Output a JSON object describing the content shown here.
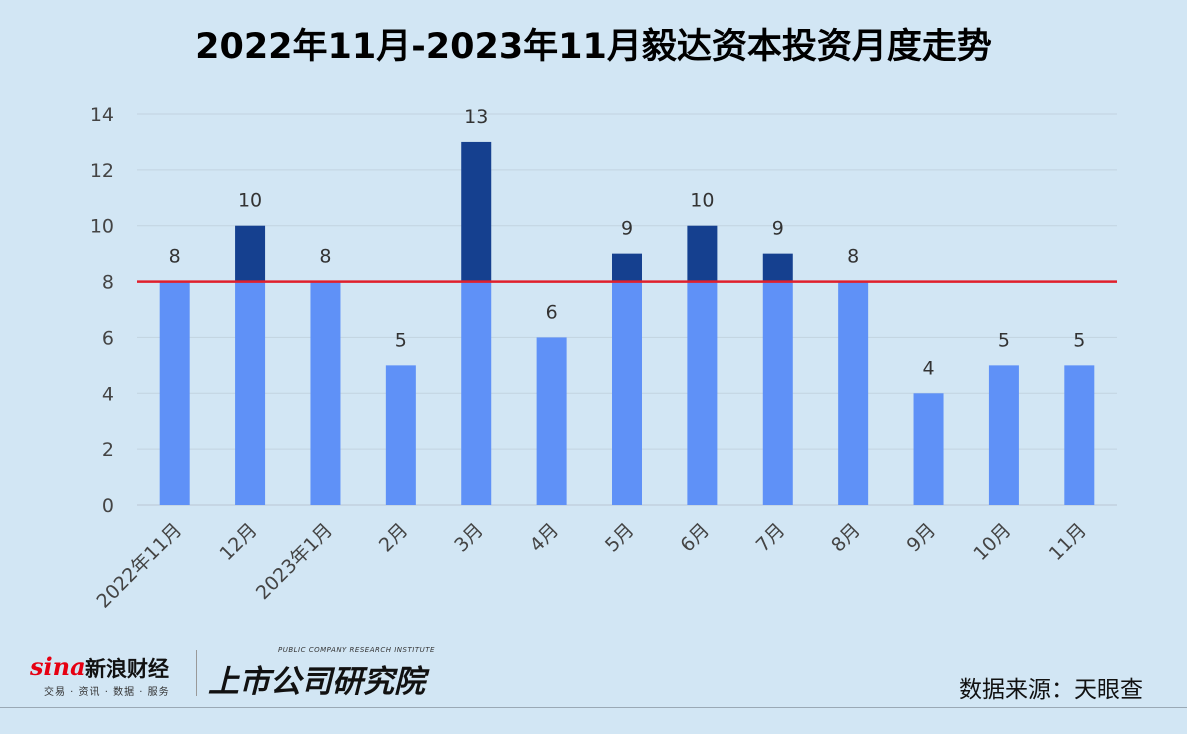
{
  "title": "2022年11月-2023年11月毅达资本投资月度走势",
  "source": "数据来源：天眼查",
  "branding": {
    "sina_word": "sina",
    "sina_name": "新浪财经",
    "sina_tagline": "交易 · 资讯 · 数据 · 服务",
    "institute_en": "PUBLIC COMPANY RESEARCH INSTITUTE",
    "institute_cn": "上市公司研究院"
  },
  "colors": {
    "bar_base": "#5f91f7",
    "bar_above": "#15408f",
    "reference_line": "#e0202c",
    "grid": "#c2d3e0"
  },
  "chart_data": {
    "type": "bar",
    "title": "2022年11月-2023年11月毅达资本投资月度走势",
    "categories": [
      "2022年11月",
      "12月",
      "2023年1月",
      "2月",
      "3月",
      "4月",
      "5月",
      "6月",
      "7月",
      "8月",
      "9月",
      "10月",
      "11月"
    ],
    "values": [
      8,
      10,
      8,
      5,
      13,
      6,
      9,
      10,
      9,
      8,
      4,
      5,
      5
    ],
    "ylim": [
      0,
      14
    ],
    "yticks": [
      0,
      2,
      4,
      6,
      8,
      10,
      12,
      14
    ],
    "reference_line": 8,
    "xlabel": "",
    "ylabel": "",
    "grid": true,
    "legend": "none",
    "data_labels": true
  }
}
